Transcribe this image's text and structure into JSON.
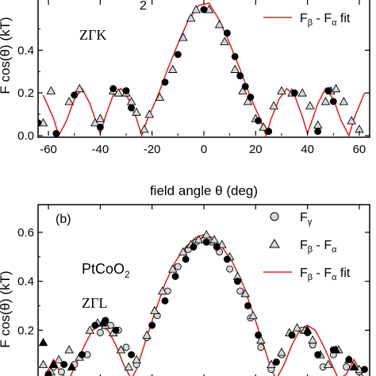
{
  "chart_data": [
    {
      "type": "scatter",
      "panel_label": "",
      "annotations": [
        "ZΓK"
      ],
      "xlabel": "field angle θ (deg)",
      "ylabel": "F cos(θ) (kT)",
      "xlim": [
        -64,
        64
      ],
      "ylim": [
        0.0,
        0.62
      ],
      "xticks": [
        -60,
        -40,
        -20,
        0,
        20,
        40,
        60
      ],
      "xtick_labels": [
        "-60",
        "-40",
        "-20",
        "0",
        "20",
        "40",
        "60"
      ],
      "yticks": [
        0.0,
        0.2,
        0.4
      ],
      "ytick_labels": [
        "0.0",
        "0.2",
        "0.4"
      ],
      "legend": {
        "position": "top-right",
        "entries": [
          "F_β - F_α fit"
        ]
      },
      "grid": false,
      "series": [
        {
          "name": "F_β - F_α",
          "marker": "open-triangle",
          "x": [
            -62,
            -59,
            -52,
            -48,
            -42,
            -40,
            -35,
            -33,
            -30,
            -28,
            -26,
            -23,
            -21,
            -17,
            -12,
            -8,
            -5,
            -3,
            2,
            6,
            8,
            12,
            15,
            17,
            20,
            23,
            27,
            30,
            34,
            38,
            41,
            44,
            47,
            49,
            51,
            54,
            57,
            60
          ],
          "y": [
            0.06,
            0.21,
            0.16,
            0.22,
            0.06,
            0.08,
            0.21,
            0.2,
            0.2,
            0.16,
            0.11,
            0.03,
            0.1,
            0.18,
            0.31,
            0.46,
            0.55,
            0.59,
            0.59,
            0.52,
            0.44,
            0.31,
            0.21,
            0.16,
            0.08,
            0.04,
            0.14,
            0.21,
            0.2,
            0.2,
            0.14,
            0.05,
            0.16,
            0.21,
            0.22,
            0.16,
            0.07,
            0.03
          ]
        },
        {
          "name": "F_β",
          "marker": "filled-circle",
          "x": [
            -64,
            -57,
            -50,
            -40,
            -35,
            -30,
            -28,
            -15,
            -10,
            0,
            9,
            12,
            14,
            16,
            18,
            21,
            25,
            35,
            44,
            48,
            50
          ],
          "y": [
            0.06,
            0.01,
            0.19,
            0.04,
            0.22,
            0.21,
            0.13,
            0.25,
            0.38,
            0.59,
            0.48,
            0.37,
            0.28,
            0.23,
            0.18,
            0.07,
            0.02,
            0.2,
            0.02,
            0.21,
            0.16
          ]
        }
      ],
      "fit": {
        "name": "F_β - F_α fit",
        "color": "#d42a2a",
        "x": [
          -62,
          -58,
          -56,
          -53,
          -50,
          -47,
          -44,
          -42,
          -40,
          -38,
          -35,
          -32,
          -29,
          -26,
          -24,
          -22,
          -18,
          -14,
          -10,
          -6,
          -2,
          2,
          6,
          10,
          14,
          18,
          22,
          24,
          26,
          29,
          32,
          35,
          38,
          40,
          42,
          44,
          47,
          50,
          53,
          56,
          58,
          62
        ],
        "y": [
          0.19,
          0.08,
          0.0,
          0.07,
          0.17,
          0.22,
          0.15,
          0.08,
          0.01,
          0.09,
          0.19,
          0.22,
          0.17,
          0.08,
          0.0,
          0.07,
          0.18,
          0.31,
          0.43,
          0.54,
          0.61,
          0.62,
          0.54,
          0.43,
          0.31,
          0.18,
          0.07,
          0.0,
          0.08,
          0.17,
          0.22,
          0.19,
          0.09,
          0.01,
          0.08,
          0.15,
          0.22,
          0.17,
          0.07,
          0.0,
          0.08,
          0.2
        ]
      }
    },
    {
      "type": "scatter",
      "panel_label": "(b)",
      "annotations": [
        "PtCoO2",
        "ZΓL"
      ],
      "xlabel": "",
      "ylabel": "F cos(θ) (kT)",
      "xlim": [
        -64,
        64
      ],
      "ylim": [
        0.0,
        0.7
      ],
      "yticks": [
        0.2,
        0.4,
        0.6
      ],
      "ytick_labels": [
        "0.2",
        "0.4",
        "0.6"
      ],
      "legend": {
        "position": "top-right",
        "entries": [
          "F_γ",
          "F_β - F_α",
          "F_β - F_α fit"
        ]
      },
      "grid": false,
      "series": [
        {
          "name": "F_γ",
          "marker": "open-circle",
          "x": [
            -58,
            -55,
            -50,
            -45,
            -40,
            -36,
            -33,
            -30,
            -26,
            -22,
            -18,
            -14,
            -10,
            -6,
            -3,
            0,
            3,
            6,
            10,
            14,
            18,
            22,
            26,
            30,
            34,
            38,
            42,
            46,
            50,
            55,
            60
          ],
          "y": [
            0.05,
            0.03,
            0.06,
            0.1,
            0.19,
            0.22,
            0.2,
            0.13,
            0.06,
            0.17,
            0.26,
            0.36,
            0.46,
            0.53,
            0.56,
            0.57,
            0.56,
            0.52,
            0.45,
            0.36,
            0.25,
            0.13,
            0.04,
            0.1,
            0.18,
            0.2,
            0.14,
            0.05,
            0.1,
            0.05,
            0.03
          ]
        },
        {
          "name": "F_β - F_α",
          "marker": "open-triangle",
          "x": [
            -62,
            -59,
            -56,
            -52,
            -48,
            -44,
            -41,
            -38,
            -35,
            -32,
            -29,
            -26,
            -22,
            -19,
            -16,
            -12,
            -8,
            -5,
            -2,
            1,
            4,
            7,
            10,
            13,
            16,
            19,
            22,
            26,
            30,
            33,
            36,
            39,
            42,
            45,
            48,
            52,
            56,
            60
          ],
          "y": [
            0.06,
            0.03,
            0.08,
            0.12,
            0.09,
            0.2,
            0.23,
            0.22,
            0.19,
            0.12,
            0.05,
            0.08,
            0.18,
            0.28,
            0.36,
            0.45,
            0.52,
            0.55,
            0.57,
            0.59,
            0.57,
            0.55,
            0.5,
            0.42,
            0.35,
            0.26,
            0.16,
            0.06,
            0.11,
            0.19,
            0.21,
            0.2,
            0.16,
            0.1,
            0.06,
            0.12,
            0.08,
            0.04
          ]
        },
        {
          "name": "filled",
          "marker": "filled-circle",
          "x": [
            -60,
            -54,
            -47,
            -42,
            -38,
            -34,
            -28,
            -20,
            -15,
            -11,
            -7,
            -4,
            1,
            5,
            9,
            13,
            17,
            21,
            28,
            34,
            40,
            44,
            50,
            56,
            62
          ],
          "y": [
            0.02,
            0.06,
            0.1,
            0.22,
            0.24,
            0.2,
            0.1,
            0.22,
            0.32,
            0.42,
            0.49,
            0.54,
            0.56,
            0.54,
            0.49,
            0.4,
            0.3,
            0.18,
            0.07,
            0.18,
            0.19,
            0.1,
            0.12,
            0.08,
            0.04
          ]
        },
        {
          "name": "filled-triangle",
          "marker": "filled-triangle",
          "x": [
            -62,
            -58,
            -51,
            -39,
            40,
            51,
            58
          ],
          "y": [
            0.15,
            0.06,
            0.05,
            0.23,
            0.2,
            0.12,
            0.05
          ]
        }
      ],
      "fit": {
        "name": "F_β - F_α fit",
        "color": "#d42a2a",
        "x": [
          -62,
          -58,
          -55,
          -52,
          -49,
          -46,
          -43,
          -40,
          -37,
          -34,
          -31,
          -28,
          -26,
          -23,
          -19,
          -15,
          -11,
          -7,
          -3,
          0,
          3,
          7,
          11,
          15,
          19,
          23,
          26,
          28,
          31,
          34,
          37,
          40,
          43,
          46,
          49,
          52,
          55,
          58,
          62
        ],
        "y": [
          0.0,
          0.08,
          0.02,
          0.0,
          0.07,
          0.14,
          0.2,
          0.22,
          0.2,
          0.14,
          0.06,
          0.0,
          0.04,
          0.14,
          0.27,
          0.39,
          0.48,
          0.54,
          0.58,
          0.59,
          0.58,
          0.54,
          0.48,
          0.39,
          0.27,
          0.14,
          0.04,
          0.0,
          0.06,
          0.14,
          0.2,
          0.22,
          0.2,
          0.14,
          0.07,
          0.0,
          0.02,
          0.08,
          0.0
        ]
      }
    }
  ],
  "legend_labels": {
    "a_fit": "F",
    "a_fit_sub1": "β",
    "a_fit_mid": " - F",
    "a_fit_sub2": "α",
    "a_fit_end": " fit",
    "b_gamma": "F",
    "b_gamma_sub": "γ",
    "b_diff": "F",
    "b_diff_sub1": "β",
    "b_diff_mid": " - F",
    "b_diff_sub2": "α",
    "b_fit": "F",
    "b_fit_sub1": "β",
    "b_fit_mid": " - F",
    "b_fit_sub2": "α",
    "b_fit_end": " fit"
  },
  "text": {
    "a_zgk": "ZΓK",
    "a_frag": "2",
    "b_panel": "(b)",
    "b_compound": "PtCoO",
    "b_compound_sub": "2",
    "b_zgl": "ZΓL",
    "a_ylabel": "F cos(θ) (kT)",
    "b_ylabel": "F cos(θ) (kT)",
    "xlabel": "field angle θ (deg)"
  },
  "colors": {
    "fit": "#d42a2a",
    "open_fill": "#d8d8d8",
    "axis": "#000000"
  }
}
